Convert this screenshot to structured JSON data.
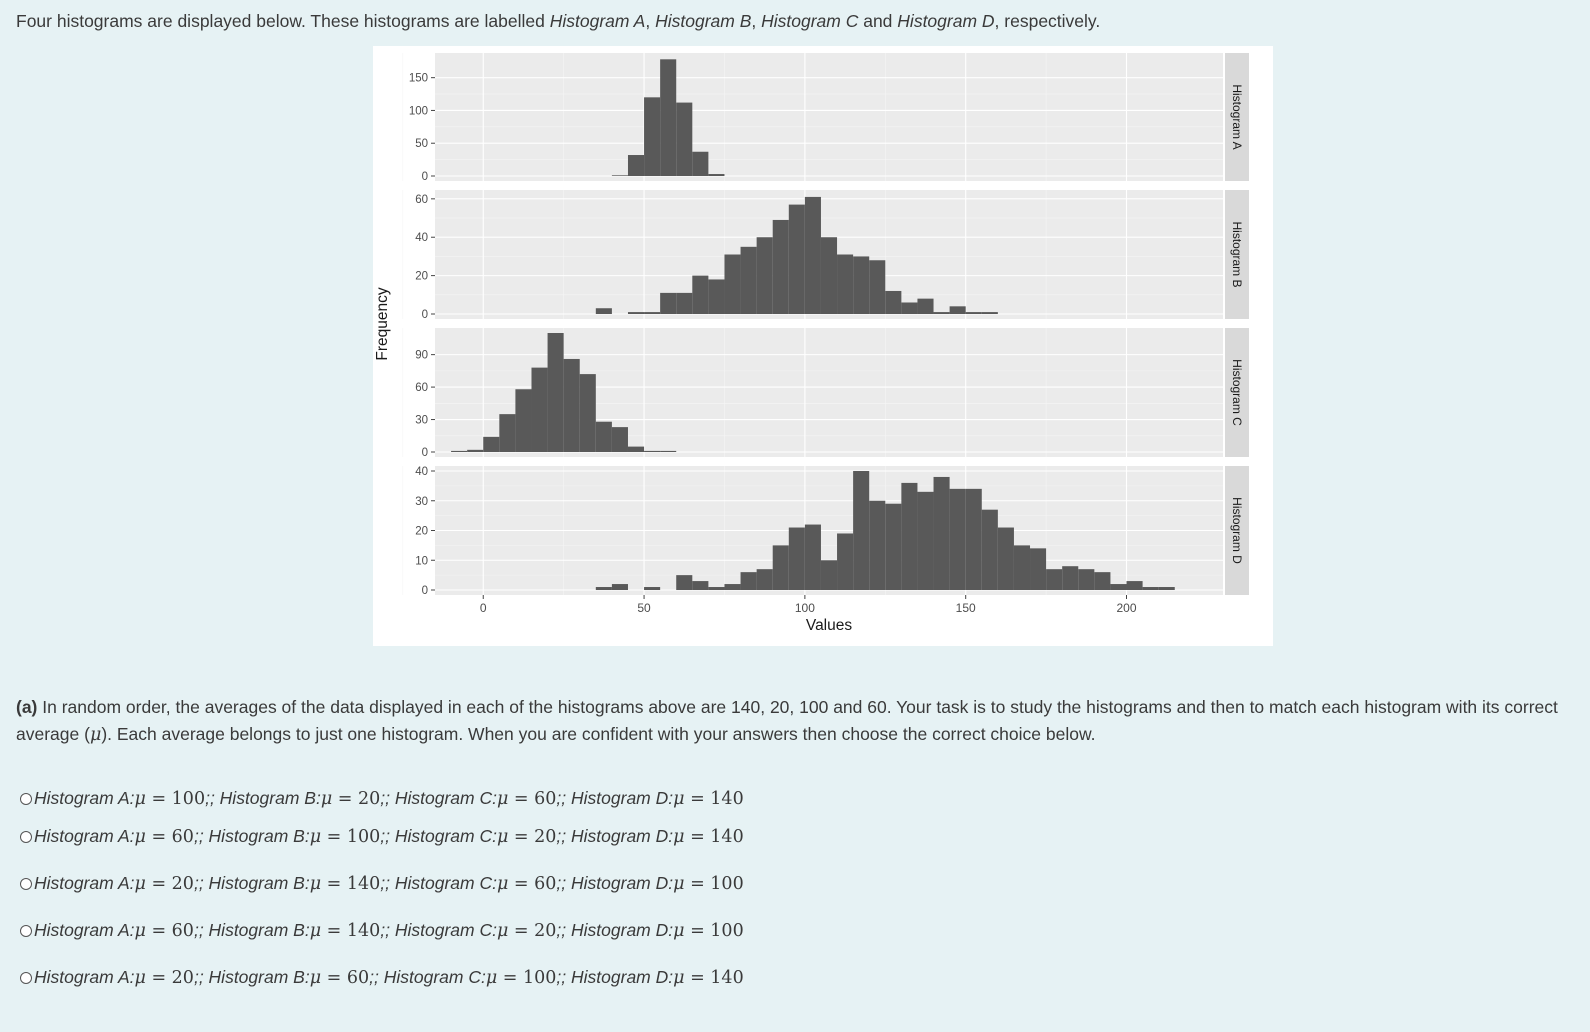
{
  "intro": {
    "pre": "Four histograms are displayed below.  These histograms are labelled ",
    "a": "Histogram A",
    "sep1": ", ",
    "b": "Histogram B",
    "sep2": ", ",
    "c": "Histogram C",
    "and": " and ",
    "d": "Histogram D",
    "post": ", respectively."
  },
  "chart_data": {
    "type": "bar",
    "xlabel": "Values",
    "ylabel": "Frequency",
    "xlim": [
      -15,
      230
    ],
    "x_ticks": [
      0,
      50,
      100,
      150,
      200
    ],
    "bin_width": 5,
    "grid": true,
    "panels": [
      {
        "name": "Histogram A",
        "ylim": [
          0,
          180
        ],
        "y_ticks": [
          0,
          50,
          100,
          150
        ],
        "bins": [
          [
            42.5,
            1
          ],
          [
            47.5,
            32
          ],
          [
            52.5,
            120
          ],
          [
            57.5,
            178
          ],
          [
            62.5,
            112
          ],
          [
            67.5,
            37
          ],
          [
            72.5,
            3
          ]
        ]
      },
      {
        "name": "Histogram B",
        "ylim": [
          0,
          62
        ],
        "y_ticks": [
          0,
          20,
          40,
          60
        ],
        "bins": [
          [
            37.5,
            3
          ],
          [
            47.5,
            1
          ],
          [
            52.5,
            1
          ],
          [
            57.5,
            11
          ],
          [
            62.5,
            11
          ],
          [
            67.5,
            20
          ],
          [
            72.5,
            18
          ],
          [
            77.5,
            31
          ],
          [
            82.5,
            35
          ],
          [
            87.5,
            40
          ],
          [
            92.5,
            49
          ],
          [
            97.5,
            57
          ],
          [
            102.5,
            61
          ],
          [
            107.5,
            40
          ],
          [
            112.5,
            31
          ],
          [
            117.5,
            30
          ],
          [
            122.5,
            28
          ],
          [
            127.5,
            12
          ],
          [
            132.5,
            6
          ],
          [
            137.5,
            8
          ],
          [
            142.5,
            1
          ],
          [
            147.5,
            4
          ],
          [
            152.5,
            1
          ],
          [
            157.5,
            1
          ]
        ]
      },
      {
        "name": "Histogram C",
        "ylim": [
          0,
          110
        ],
        "y_ticks": [
          0,
          30,
          60,
          90
        ],
        "bins": [
          [
            -7.5,
            1
          ],
          [
            -2.5,
            2
          ],
          [
            2.5,
            14
          ],
          [
            7.5,
            35
          ],
          [
            12.5,
            58
          ],
          [
            17.5,
            78
          ],
          [
            22.5,
            110
          ],
          [
            27.5,
            86
          ],
          [
            32.5,
            72
          ],
          [
            37.5,
            28
          ],
          [
            42.5,
            23
          ],
          [
            47.5,
            5
          ],
          [
            52.5,
            1
          ],
          [
            57.5,
            1
          ]
        ]
      },
      {
        "name": "Histogram D",
        "ylim": [
          0,
          40
        ],
        "y_ticks": [
          0,
          10,
          20,
          30,
          40
        ],
        "bins": [
          [
            37.5,
            1
          ],
          [
            42.5,
            2
          ],
          [
            52.5,
            1
          ],
          [
            62.5,
            5
          ],
          [
            67.5,
            3
          ],
          [
            72.5,
            1
          ],
          [
            77.5,
            2
          ],
          [
            82.5,
            6
          ],
          [
            87.5,
            7
          ],
          [
            92.5,
            15
          ],
          [
            97.5,
            21
          ],
          [
            102.5,
            22
          ],
          [
            107.5,
            10
          ],
          [
            112.5,
            19
          ],
          [
            117.5,
            40
          ],
          [
            122.5,
            30
          ],
          [
            127.5,
            29
          ],
          [
            132.5,
            36
          ],
          [
            137.5,
            33
          ],
          [
            142.5,
            38
          ],
          [
            147.5,
            34
          ],
          [
            152.5,
            34
          ],
          [
            157.5,
            27
          ],
          [
            162.5,
            21
          ],
          [
            167.5,
            15
          ],
          [
            172.5,
            14
          ],
          [
            177.5,
            7
          ],
          [
            182.5,
            8
          ],
          [
            187.5,
            7
          ],
          [
            192.5,
            6
          ],
          [
            197.5,
            2
          ],
          [
            202.5,
            3
          ],
          [
            207.5,
            1
          ],
          [
            212.5,
            1
          ]
        ]
      }
    ]
  },
  "question": {
    "label": "(a)",
    "text1": " In random order, the averages of the data displayed in each of the histograms above are 140, 20, 100 and 60. Your task is to study the histograms and then to match each histogram with its correct average (",
    "mu": "μ",
    "text2": "). Each average belongs to just one histogram. When you are confident with your answers then choose the correct choice below."
  },
  "options": [
    {
      "a": "100",
      "b": "20",
      "c": "60",
      "d": "140"
    },
    {
      "a": "60",
      "b": "100",
      "c": "20",
      "d": "140"
    },
    {
      "a": "20",
      "b": "140",
      "c": "60",
      "d": "100"
    },
    {
      "a": "60",
      "b": "140",
      "c": "20",
      "d": "100"
    },
    {
      "a": "20",
      "b": "60",
      "c": "100",
      "d": "140"
    }
  ],
  "option_labels": {
    "a": "Histogram A: ",
    "b": "Histogram B: ",
    "c": "Histogram C: ",
    "d": "Histogram D: ",
    "mu": "μ",
    "eq": " = ",
    "sep": ";; "
  }
}
